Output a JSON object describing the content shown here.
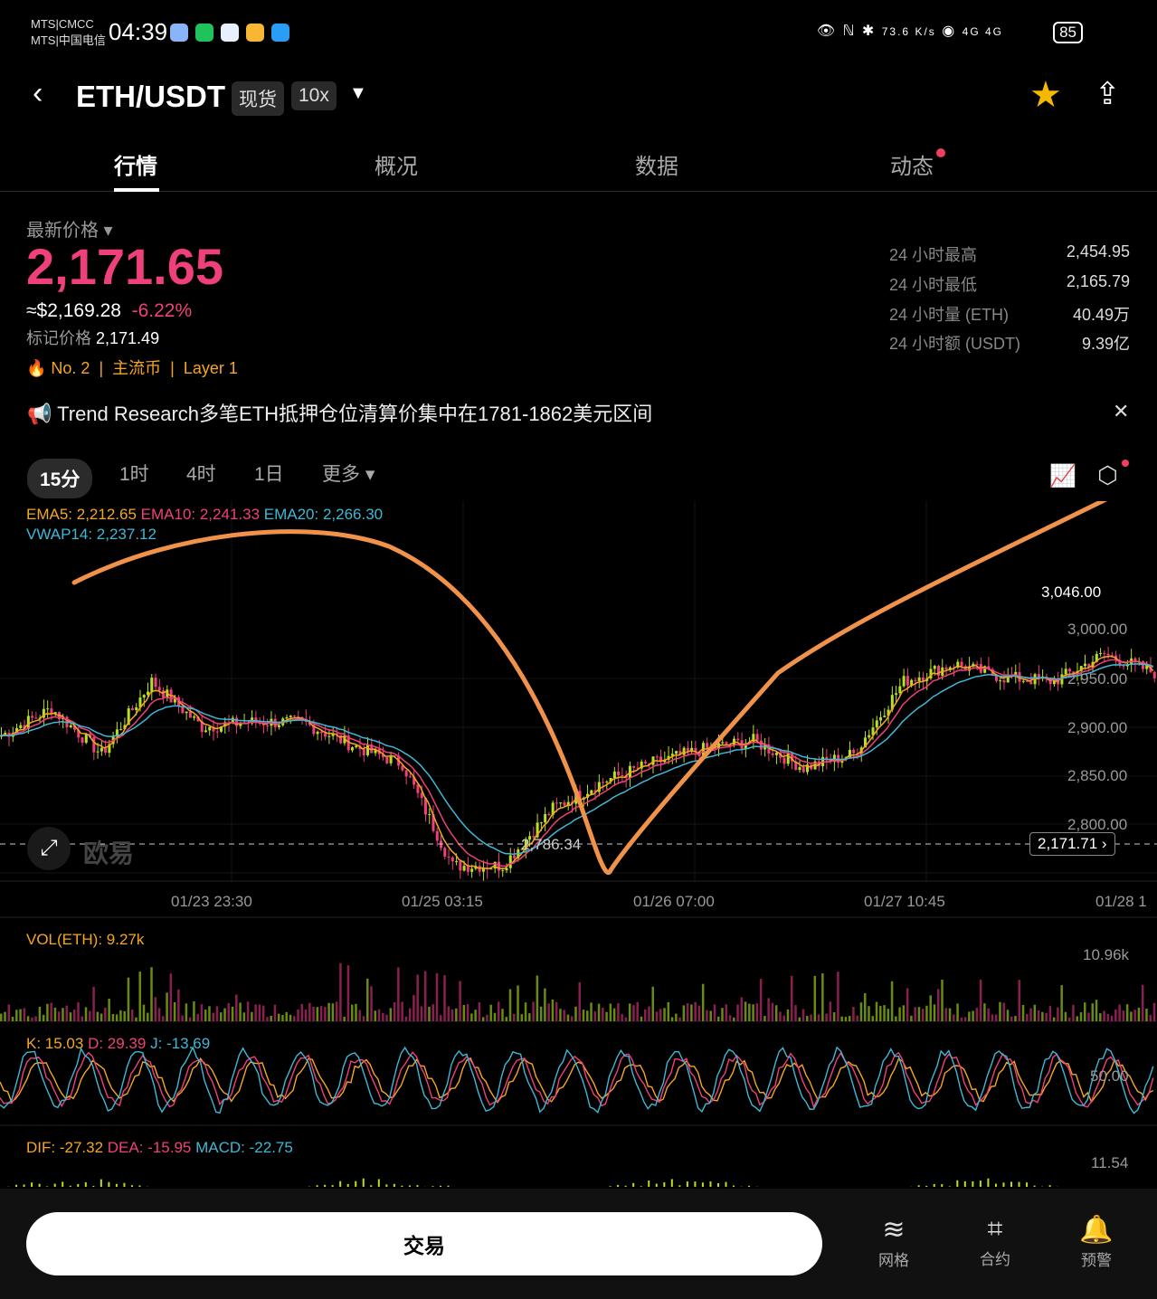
{
  "status": {
    "carrier1": "MTS|CMCC",
    "carrier2": "MTS|中国电信",
    "time": "04:39",
    "net_speed": "73.6 K/s",
    "signal": "4G 4G",
    "battery": "85"
  },
  "header": {
    "pair": "ETH/USDT",
    "tag_spot": "现货",
    "tag_leverage": "10x",
    "favorite": true
  },
  "tabs": [
    {
      "label": "行情",
      "active": true
    },
    {
      "label": "概况"
    },
    {
      "label": "数据"
    },
    {
      "label": "动态",
      "badge": true
    }
  ],
  "price": {
    "label": "最新价格",
    "last": "2,171.65",
    "usd": "≈$2,169.28",
    "change": "-6.22%",
    "mark_label": "标记价格",
    "mark": "2,171.49",
    "rank": "No. 2",
    "tag1": "主流币",
    "tag2": "Layer 1"
  },
  "stats": [
    {
      "k": "24 小时最高",
      "v": "2,454.95"
    },
    {
      "k": "24 小时最低",
      "v": "2,165.79"
    },
    {
      "k": "24 小时量 (ETH)",
      "v": "40.49万"
    },
    {
      "k": "24 小时额 (USDT)",
      "v": "9.39亿"
    }
  ],
  "news": "Trend Research多笔ETH抵押仓位清算价集中在1781-1862美元区间",
  "timeframes": [
    {
      "label": "15分",
      "active": true
    },
    {
      "label": "1时"
    },
    {
      "label": "4时"
    },
    {
      "label": "1日"
    },
    {
      "label": "更多 ▾"
    }
  ],
  "indicators": {
    "ema5": "EMA5: 2,212.65",
    "ema10": "EMA10: 2,241.33",
    "ema20": "EMA20: 2,266.30",
    "vwap": "VWAP14: 2,237.12",
    "vol": "VOL(ETH): 9.27k",
    "vol_max": "10.96k",
    "k": "K: 15.03",
    "d": "D: 29.39",
    "j": "J: -13.69",
    "kdj_axis": "50.00",
    "dif": "DIF: -27.32",
    "dea": "DEA: -15.95",
    "macd": "MACD: -22.75",
    "macd_axis": "11.54"
  },
  "chart_data": {
    "type": "candlestick",
    "y_ticks": [
      "3,000.00",
      "2,950.00",
      "2,900.00",
      "2,850.00",
      "2,800.00"
    ],
    "x_ticks": [
      "01/23 23:30",
      "01/25 03:15",
      "01/26 07:00",
      "01/27 10:45",
      "01/28 1"
    ],
    "high_label": "3,046.00",
    "low_label": "2,786.34",
    "current_price_label": "2,171.71",
    "watermark": "欧易",
    "close_approx": [
      2941,
      2969,
      2922,
      2997,
      2950,
      2955,
      2955,
      2931,
      2912,
      2807,
      2807,
      2866,
      2894,
      2913,
      2927,
      2936,
      2908,
      2922,
      2997,
      3015,
      3001,
      2997,
      3025,
      3006
    ],
    "colors": {
      "up": "#b7e01f",
      "down": "#f0407a",
      "ema5": "#f5a623",
      "ema10": "#f0407a",
      "ema20": "#3fb8d6",
      "annotation": "#f0924a"
    }
  },
  "bottom": {
    "trade": "交易",
    "nav": [
      {
        "icon": "grid-icon",
        "label": "网格"
      },
      {
        "icon": "contract-icon",
        "label": "合约"
      },
      {
        "icon": "alert-icon",
        "label": "预警"
      }
    ]
  }
}
